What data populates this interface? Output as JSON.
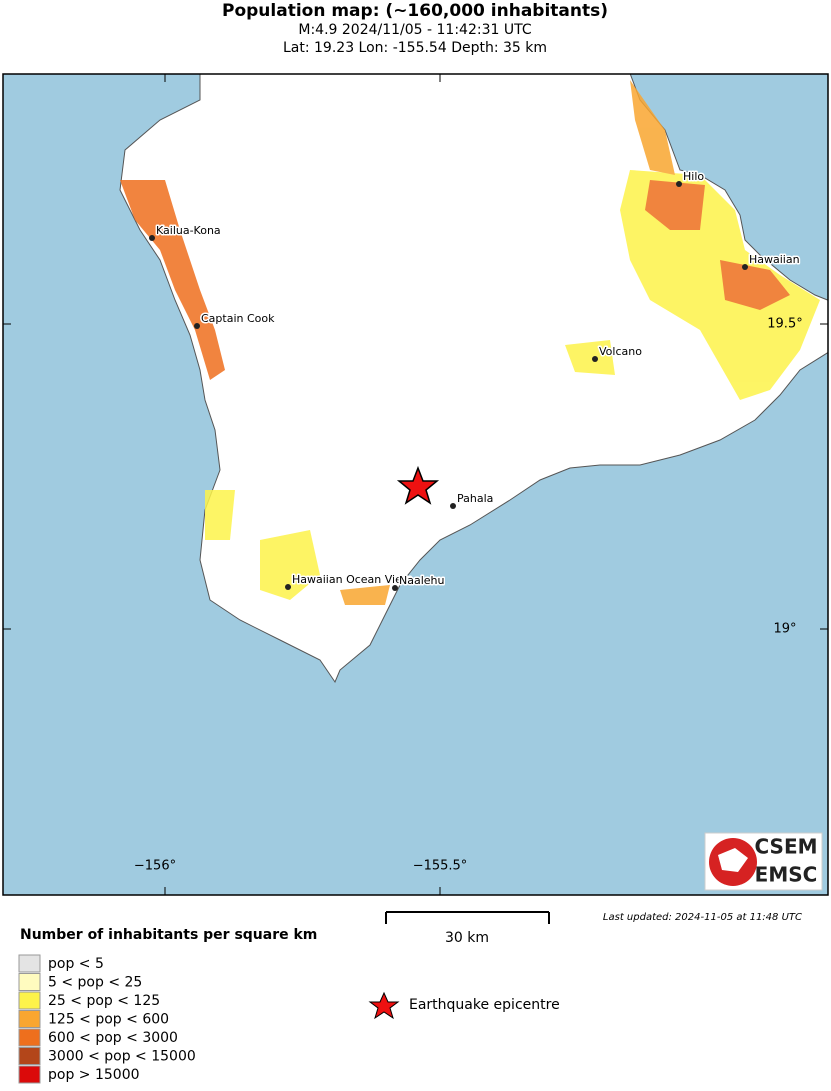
{
  "header": {
    "title": "Population map: (~160,000 inhabitants)",
    "subtitle": "M:4.9 2024/11/05 - 11:42:31 UTC",
    "location": "Lat: 19.23 Lon: -155.54 Depth: 35 km"
  },
  "map": {
    "cities": [
      "Kailua-Kona",
      "Captain Cook",
      "Hilo",
      "Hawaiian",
      "Volcano",
      "Pahala",
      "Hawaiian Ocean View",
      "Naalehu"
    ],
    "lon_labels": [
      "−156°",
      "−155.5°"
    ],
    "lat_labels": [
      "19.5°",
      "19°"
    ],
    "scale_label": "30 km",
    "updated": "Last updated: 2024-11-05 at 11:48 UTC",
    "logo": [
      "CSEM",
      "EMSC"
    ]
  },
  "legend": {
    "title": "Number of inhabitants per square km",
    "items": [
      {
        "label": "pop < 5",
        "color": "#e4e4e4"
      },
      {
        "label": "5 < pop < 25",
        "color": "#fffbbf"
      },
      {
        "label": "25 < pop < 125",
        "color": "#fdf34a"
      },
      {
        "label": "125 < pop < 600",
        "color": "#f9a630"
      },
      {
        "label": "600 < pop < 3000",
        "color": "#ee6f1d"
      },
      {
        "label": "3000 < pop < 15000",
        "color": "#b3461a"
      },
      {
        "label": "pop > 15000",
        "color": "#db0a0a"
      }
    ],
    "epicentre": "Earthquake epicentre"
  }
}
